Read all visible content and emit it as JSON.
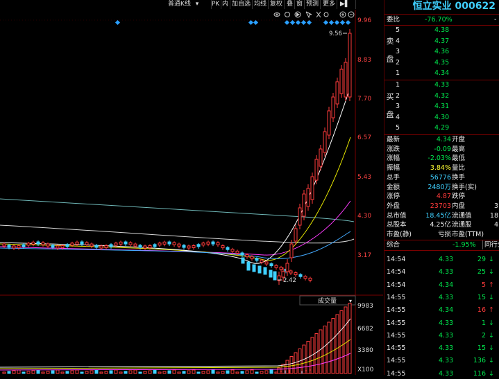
{
  "toolbar": {
    "kline_type": "普通K线",
    "items": [
      "PK",
      "内",
      "加自选",
      "均线",
      "复权",
      "叠",
      "窗",
      "预测",
      "更多"
    ]
  },
  "chart": {
    "price_axis": [
      "9.96",
      "8.83",
      "7.70",
      "6.57",
      "5.43",
      "4.30",
      "3.17"
    ],
    "max_label": "9.56",
    "min_label": "2.42",
    "volume_title": "成交量",
    "volume_axis": [
      "9983",
      "6682",
      "3380",
      "X100"
    ]
  },
  "stock": {
    "name": "恒立实业",
    "code": "000622"
  },
  "order_ratio": {
    "label": "委比",
    "value": "-76.70%",
    "diff": "-"
  },
  "sell_label": [
    "卖",
    "盘"
  ],
  "buy_label": [
    "买",
    "盘"
  ],
  "asks": [
    {
      "level": "5",
      "price": "4.38"
    },
    {
      "level": "4",
      "price": "4.37"
    },
    {
      "level": "3",
      "price": "4.36"
    },
    {
      "level": "2",
      "price": "4.35"
    },
    {
      "level": "1",
      "price": "4.34"
    }
  ],
  "bids": [
    {
      "level": "1",
      "price": "4.33"
    },
    {
      "level": "2",
      "price": "4.32"
    },
    {
      "level": "3",
      "price": "4.31"
    },
    {
      "level": "4",
      "price": "4.30"
    },
    {
      "level": "5",
      "price": "4.29"
    }
  ],
  "quote": [
    {
      "l1": "最新",
      "v1": "4.34",
      "c1": "green",
      "l2": "开盘",
      "v2": ""
    },
    {
      "l1": "涨跌",
      "v1": "-0.09",
      "c1": "green",
      "l2": "最高",
      "v2": ""
    },
    {
      "l1": "涨幅",
      "v1": "-2.03%",
      "c1": "green",
      "l2": "最低",
      "v2": ""
    },
    {
      "l1": "振幅",
      "v1": "3.84%",
      "c1": "yellow",
      "l2": "量比",
      "v2": ""
    },
    {
      "l1": "总手",
      "v1": "56776",
      "c1": "cyan",
      "l2": "换手",
      "v2": ""
    },
    {
      "l1": "金额",
      "v1": "2480万",
      "c1": "cyan",
      "l2": "换手(实)",
      "v2": ""
    },
    {
      "l1": "涨停",
      "v1": "4.87",
      "c1": "red",
      "l2": "跌停",
      "v2": ""
    },
    {
      "l1": "外盘",
      "v1": "23703",
      "c1": "red",
      "l2": "内盘",
      "v2": "3"
    },
    {
      "l1": "总市值",
      "v1": "18.45亿",
      "c1": "cyan",
      "l2": "流通值",
      "v2": "18"
    },
    {
      "l1": "总股本",
      "v1": "4.25亿",
      "c1": "white",
      "l2": "流通股",
      "v2": "4"
    },
    {
      "l1": "市盈(静)",
      "v1": "亏损",
      "c1": "white",
      "l2": "市盈(TTM)",
      "v2": ""
    }
  ],
  "sector": {
    "label": "综合",
    "value": "-1.95%",
    "extra": "同行业"
  },
  "ticks": [
    {
      "time": "14:54",
      "price": "4.33",
      "pc": "green",
      "vol": "29",
      "dir": "down"
    },
    {
      "time": "14:54",
      "price": "4.33",
      "pc": "green",
      "vol": "25",
      "dir": "down"
    },
    {
      "time": "14:54",
      "price": "4.34",
      "pc": "green",
      "vol": "5",
      "dir": "up"
    },
    {
      "time": "14:55",
      "price": "4.33",
      "pc": "green",
      "vol": "15",
      "dir": "down"
    },
    {
      "time": "14:55",
      "price": "4.34",
      "pc": "green",
      "vol": "16",
      "dir": "up"
    },
    {
      "time": "14:55",
      "price": "4.33",
      "pc": "green",
      "vol": "1",
      "dir": "down"
    },
    {
      "time": "14:55",
      "price": "4.33",
      "pc": "green",
      "vol": "2",
      "dir": "down"
    },
    {
      "time": "14:55",
      "price": "4.33",
      "pc": "green",
      "vol": "15",
      "dir": "down"
    },
    {
      "time": "14:55",
      "price": "4.33",
      "pc": "green",
      "vol": "136",
      "dir": "down"
    },
    {
      "time": "14:55",
      "price": "4.33",
      "pc": "green",
      "vol": "116",
      "dir": "down"
    }
  ]
}
